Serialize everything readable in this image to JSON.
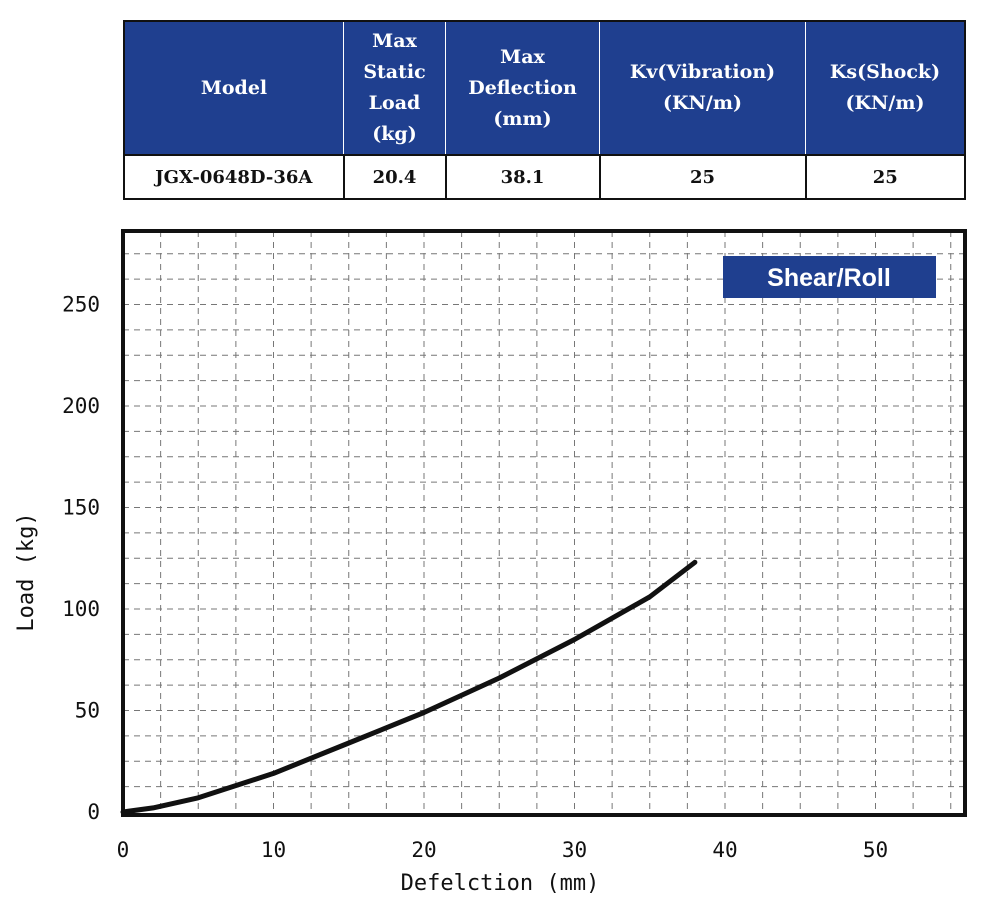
{
  "spec_table": {
    "headers": [
      [
        "Model"
      ],
      [
        "Max",
        "Static",
        "Load",
        "(kg)"
      ],
      [
        "Max",
        "Deflection",
        "(mm)"
      ],
      [
        "Kv(Vibration)",
        "(KN/m)"
      ],
      [
        "Ks(Shock)",
        "(KN/m)"
      ]
    ],
    "row": [
      "JGX-0648D-36A",
      "20.4",
      "38.1",
      "25",
      "25"
    ]
  },
  "chart_data": {
    "type": "line",
    "title": "",
    "badge": "Shear/Roll",
    "xlabel": "Defelction (mm)",
    "ylabel": "Load (kg)",
    "xlim": [
      0,
      56
    ],
    "ylim": [
      0,
      285
    ],
    "x_ticks": [
      0,
      10,
      20,
      30,
      40,
      50
    ],
    "y_ticks": [
      0,
      50,
      100,
      150,
      200,
      250
    ],
    "grid": true,
    "colors": {
      "line": "#111111",
      "badge": "#1f3f8f",
      "frame": "#111111",
      "grid": "#777777"
    },
    "series": [
      {
        "x": [
          0,
          2,
          5,
          10,
          15,
          20,
          25,
          30,
          35,
          38
        ],
        "y": [
          0,
          2,
          7,
          19,
          34,
          49,
          66,
          85,
          106,
          123
        ]
      }
    ]
  }
}
